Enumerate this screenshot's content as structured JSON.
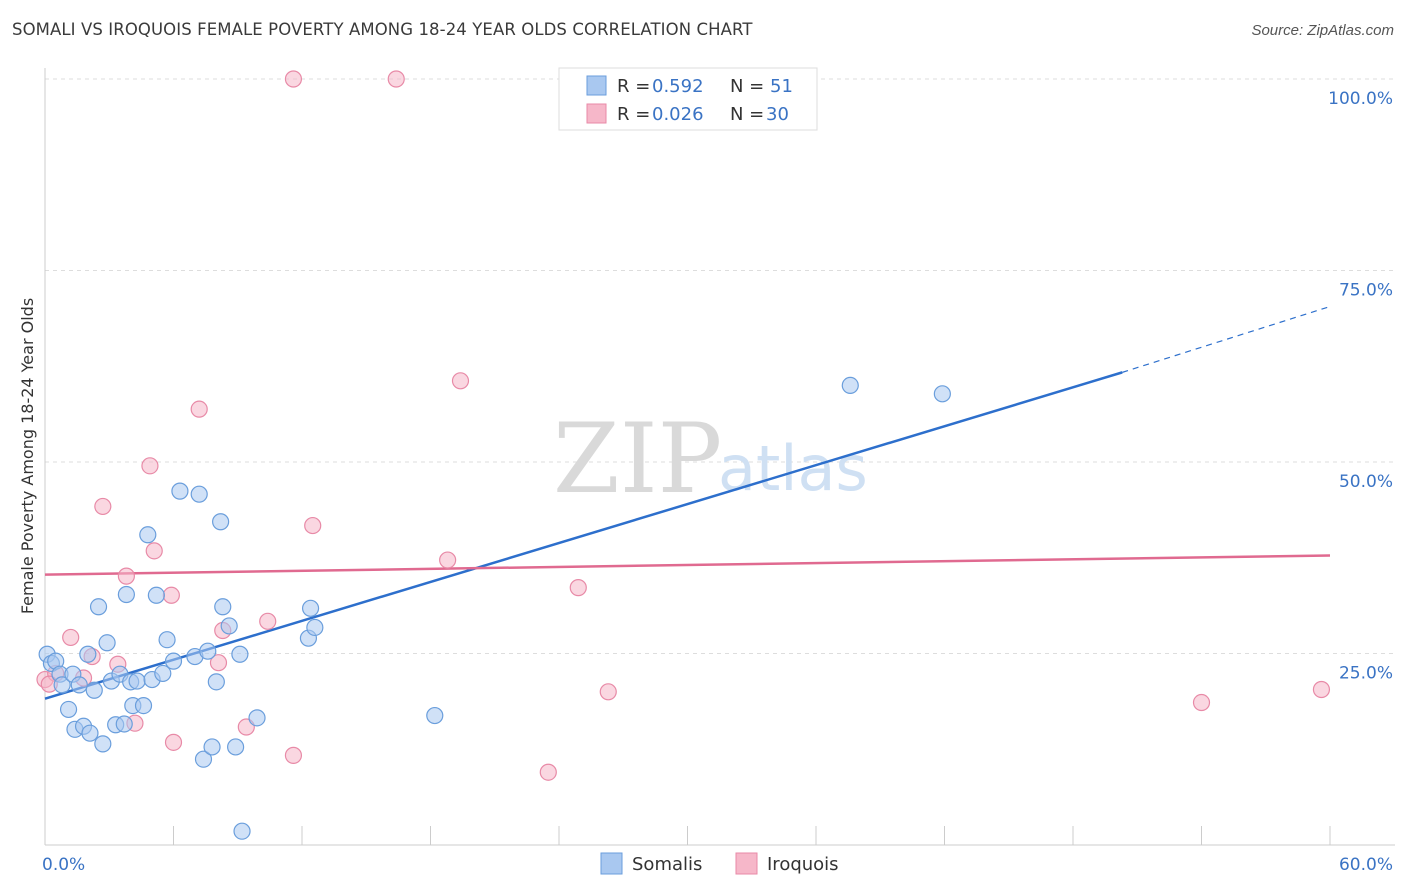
{
  "header": {
    "title": "SOMALI VS IROQUOIS FEMALE POVERTY AMONG 18-24 YEAR OLDS CORRELATION CHART",
    "source": "Source: ZipAtlas.com"
  },
  "watermark": {
    "zip": "ZIP",
    "atlas": "atlas"
  },
  "legend_top": {
    "rows": [
      {
        "r_label": "R =",
        "r_value": "0.592",
        "n_label": "N =",
        "n_value": "51",
        "color": "#a9c8f0"
      },
      {
        "r_label": "R =",
        "r_value": "0.026",
        "n_label": "N =",
        "n_value": "30",
        "color": "#f6b7c9"
      }
    ]
  },
  "legend_bottom": [
    {
      "label": "Somalis",
      "color": "#a9c8f0"
    },
    {
      "label": "Iroquois",
      "color": "#f6b7c9"
    }
  ],
  "colors": {
    "somali_fill": "#a9c8f0",
    "somali_stroke": "#6a9edc",
    "somali_line": "#2d6fcc",
    "iroquois_fill": "#f6b7c9",
    "iroquois_stroke": "#e88aa7",
    "iroquois_line": "#e06a90",
    "tick_text": "#3a73c4",
    "grid": "#dddddd"
  },
  "chart_data": {
    "type": "scatter",
    "title": "SOMALI VS IROQUOIS FEMALE POVERTY AMONG 18-24 YEAR OLDS CORRELATION CHART",
    "ylabel": "Female Poverty Among 18-24 Year Olds",
    "xlim": [
      0,
      60
    ],
    "ylim": [
      0,
      100
    ],
    "x_tick_labels": [
      "0.0%",
      "60.0%"
    ],
    "y_tick_labels": [
      "25.0%",
      "50.0%",
      "75.0%",
      "100.0%"
    ],
    "y_ticks": [
      25,
      50,
      75,
      100
    ],
    "grid": true,
    "legend_position": "top-center",
    "series": [
      {
        "name": "Somalis",
        "r": 0.592,
        "n": 51,
        "points": [
          [
            0.1,
            24.9
          ],
          [
            0.3,
            23.7
          ],
          [
            0.5,
            24.0
          ],
          [
            0.7,
            22.3
          ],
          [
            0.8,
            20.9
          ],
          [
            1.1,
            17.7
          ],
          [
            1.3,
            22.3
          ],
          [
            1.4,
            15.1
          ],
          [
            1.6,
            20.9
          ],
          [
            1.8,
            15.5
          ],
          [
            2.0,
            24.9
          ],
          [
            2.1,
            14.6
          ],
          [
            2.3,
            20.2
          ],
          [
            2.5,
            31.1
          ],
          [
            2.7,
            13.2
          ],
          [
            2.9,
            26.4
          ],
          [
            3.1,
            21.4
          ],
          [
            3.3,
            15.7
          ],
          [
            3.5,
            22.3
          ],
          [
            3.7,
            15.8
          ],
          [
            3.8,
            32.7
          ],
          [
            4.0,
            21.3
          ],
          [
            4.1,
            18.2
          ],
          [
            4.3,
            21.4
          ],
          [
            4.6,
            18.2
          ],
          [
            4.8,
            40.5
          ],
          [
            5.0,
            21.6
          ],
          [
            5.2,
            32.6
          ],
          [
            5.5,
            22.4
          ],
          [
            5.7,
            26.8
          ],
          [
            6.0,
            24.0
          ],
          [
            6.3,
            46.2
          ],
          [
            7.0,
            24.6
          ],
          [
            7.2,
            45.8
          ],
          [
            7.4,
            11.2
          ],
          [
            7.6,
            25.3
          ],
          [
            7.8,
            12.8
          ],
          [
            8.0,
            21.3
          ],
          [
            8.2,
            42.2
          ],
          [
            8.3,
            31.1
          ],
          [
            8.6,
            28.6
          ],
          [
            8.9,
            12.8
          ],
          [
            9.1,
            24.9
          ],
          [
            9.2,
            1.8
          ],
          [
            9.9,
            16.6
          ],
          [
            12.3,
            27.0
          ],
          [
            12.4,
            30.9
          ],
          [
            12.6,
            28.4
          ],
          [
            18.2,
            16.9
          ],
          [
            37.6,
            60.0
          ],
          [
            41.9,
            58.9
          ]
        ],
        "trend": {
          "x": [
            0,
            50.3
          ],
          "y": [
            19.1,
            61.7
          ],
          "dashed_to": [
            60,
            70.3
          ]
        }
      },
      {
        "name": "Iroquois",
        "r": 0.026,
        "n": 30,
        "points": [
          [
            0.0,
            21.6
          ],
          [
            0.5,
            22.4
          ],
          [
            1.2,
            27.1
          ],
          [
            1.8,
            21.8
          ],
          [
            2.2,
            24.6
          ],
          [
            2.7,
            44.2
          ],
          [
            3.4,
            23.6
          ],
          [
            3.8,
            35.1
          ],
          [
            4.2,
            15.9
          ],
          [
            4.9,
            49.5
          ],
          [
            5.1,
            38.4
          ],
          [
            5.9,
            32.6
          ],
          [
            6.0,
            13.4
          ],
          [
            7.2,
            56.9
          ],
          [
            8.1,
            23.8
          ],
          [
            8.3,
            28.0
          ],
          [
            9.4,
            15.4
          ],
          [
            10.4,
            29.2
          ],
          [
            11.6,
            11.7
          ],
          [
            11.6,
            100.0
          ],
          [
            12.5,
            41.7
          ],
          [
            16.4,
            100.0
          ],
          [
            18.8,
            37.2
          ],
          [
            19.4,
            60.6
          ],
          [
            23.5,
            9.5
          ],
          [
            24.9,
            33.6
          ],
          [
            26.3,
            20.0
          ],
          [
            54.0,
            18.6
          ],
          [
            59.6,
            20.3
          ],
          [
            0.2,
            21.0
          ]
        ],
        "trend": {
          "x": [
            0,
            60
          ],
          "y": [
            35.3,
            37.8
          ]
        }
      }
    ]
  }
}
